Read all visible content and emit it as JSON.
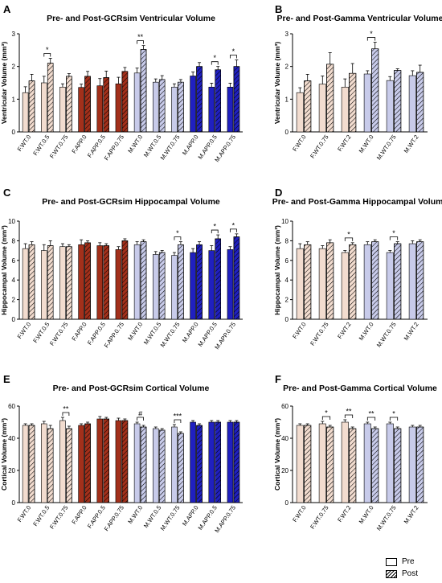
{
  "colors": {
    "wt_female": "#F2DCCF",
    "app_female": "#A3301B",
    "wt_male": "#C8CBEA",
    "app_male": "#2020C0",
    "bar_outline": "#000000"
  },
  "legend": {
    "pre_label": "Pre",
    "post_label": "Post"
  },
  "chart_data": [
    {
      "panel": "A",
      "type": "bar",
      "title": "Pre- and Post-GCRsim Ventricular Volume",
      "ylabel": "Ventricular Volume (mm³)",
      "ylim": [
        0,
        3
      ],
      "yticks": [
        0,
        1,
        2,
        3
      ],
      "categories": [
        "F.WT.0",
        "F.WT.0.5",
        "F.WT.0.75",
        "F.APP.0",
        "F.APP.0.5",
        "F.APP.0.75",
        "M.WT.0",
        "M.WT.0.5",
        "M.WT.0.75",
        "M.APP.0",
        "M.APP.0.5",
        "M.APP.0.75"
      ],
      "groups": [
        "wt_female",
        "wt_female",
        "wt_female",
        "app_female",
        "app_female",
        "app_female",
        "wt_male",
        "wt_male",
        "wt_male",
        "app_male",
        "app_male",
        "app_male"
      ],
      "series": [
        {
          "name": "Pre",
          "values": [
            1.2,
            1.5,
            1.37,
            1.36,
            1.41,
            1.47,
            1.8,
            1.52,
            1.37,
            1.71,
            1.37,
            1.37
          ],
          "errors": [
            0.18,
            0.2,
            0.1,
            0.1,
            0.22,
            0.2,
            0.15,
            0.1,
            0.1,
            0.12,
            0.12,
            0.12
          ]
        },
        {
          "name": "Post",
          "values": [
            1.56,
            2.1,
            1.7,
            1.7,
            1.66,
            1.85,
            2.52,
            1.6,
            1.52,
            2.0,
            1.9,
            2.0
          ],
          "errors": [
            0.2,
            0.15,
            0.08,
            0.15,
            0.2,
            0.12,
            0.12,
            0.12,
            0.08,
            0.12,
            0.1,
            0.2
          ]
        }
      ],
      "annotations": [
        {
          "category_index": 1,
          "text": "*"
        },
        {
          "category_index": 6,
          "text": "**"
        },
        {
          "category_index": 10,
          "text": "*"
        },
        {
          "category_index": 11,
          "text": "*"
        }
      ]
    },
    {
      "panel": "B",
      "type": "bar",
      "title": "Pre- and Post-Gamma Ventricular Volume",
      "ylabel": "Ventricular Volume (mm³)",
      "ylim": [
        0,
        3
      ],
      "yticks": [
        0,
        1,
        2,
        3
      ],
      "categories": [
        "F.WT.0",
        "F.WT.0.75",
        "F.WT.2",
        "M.WT.0",
        "M.WT.0.75",
        "M.WT.2"
      ],
      "groups": [
        "wt_female",
        "wt_female",
        "wt_female",
        "wt_male",
        "wt_male",
        "wt_male"
      ],
      "series": [
        {
          "name": "Pre",
          "values": [
            1.2,
            1.46,
            1.37,
            1.77,
            1.57,
            1.72
          ],
          "errors": [
            0.15,
            0.25,
            0.25,
            0.1,
            0.12,
            0.15
          ]
        },
        {
          "name": "Post",
          "values": [
            1.56,
            2.07,
            1.79,
            2.54,
            1.88,
            1.82
          ],
          "errors": [
            0.2,
            0.35,
            0.3,
            0.2,
            0.05,
            0.22
          ]
        }
      ],
      "annotations": [
        {
          "category_index": 3,
          "text": "*"
        }
      ]
    },
    {
      "panel": "C",
      "type": "bar",
      "title": "Pre- and Post-GCRsim Hippocampal Volume",
      "ylabel": "Hippocampal Volume (mm³)",
      "ylim": [
        0,
        10
      ],
      "yticks": [
        0,
        2,
        4,
        6,
        8,
        10
      ],
      "categories": [
        "F.WT.0",
        "F.WT.0.5",
        "F.WT.0.75",
        "F.APP.0",
        "F.APP.0.5",
        "F.APP.0.75",
        "M.WT.0",
        "M.WT.0.5",
        "M.WT.0.75",
        "M.APP.0",
        "M.APP.0.5",
        "M.APP.0.75"
      ],
      "groups": [
        "wt_female",
        "wt_female",
        "wt_female",
        "app_female",
        "app_female",
        "app_female",
        "wt_male",
        "wt_male",
        "wt_male",
        "app_male",
        "app_male",
        "app_male"
      ],
      "series": [
        {
          "name": "Pre",
          "values": [
            7.2,
            7.0,
            7.4,
            7.6,
            7.5,
            7.1,
            7.6,
            6.6,
            6.5,
            6.8,
            7.0,
            7.1
          ],
          "errors": [
            0.5,
            0.6,
            0.3,
            0.5,
            0.3,
            0.3,
            0.3,
            0.3,
            0.3,
            0.4,
            0.5,
            0.3
          ]
        },
        {
          "name": "Post",
          "values": [
            7.6,
            7.5,
            7.4,
            7.8,
            7.5,
            8.0,
            7.9,
            6.8,
            7.6,
            7.6,
            8.2,
            8.4
          ],
          "errors": [
            0.3,
            0.5,
            0.2,
            0.2,
            0.2,
            0.2,
            0.2,
            0.2,
            0.3,
            0.3,
            0.4,
            0.3
          ]
        }
      ],
      "annotations": [
        {
          "category_index": 8,
          "text": "*"
        },
        {
          "category_index": 10,
          "text": "*"
        },
        {
          "category_index": 11,
          "text": "*"
        }
      ]
    },
    {
      "panel": "D",
      "type": "bar",
      "title": "Pre- and Post-Gamma Hippocampal Volume",
      "ylabel": "Hippocampal Volume (mm³)",
      "ylim": [
        0,
        10
      ],
      "yticks": [
        0,
        2,
        4,
        6,
        8,
        10
      ],
      "categories": [
        "F.WT.0",
        "F.WT.0.75",
        "F.WT.2",
        "M.WT.0",
        "M.WT.0.75",
        "M.WT.2"
      ],
      "groups": [
        "wt_female",
        "wt_female",
        "wt_female",
        "wt_male",
        "wt_male",
        "wt_male"
      ],
      "series": [
        {
          "name": "Pre",
          "values": [
            7.2,
            7.2,
            6.8,
            7.6,
            6.8,
            7.7
          ],
          "errors": [
            0.5,
            0.3,
            0.2,
            0.3,
            0.2,
            0.3
          ]
        },
        {
          "name": "Post",
          "values": [
            7.6,
            7.8,
            7.6,
            7.9,
            7.7,
            7.9
          ],
          "errors": [
            0.3,
            0.3,
            0.2,
            0.2,
            0.2,
            0.2
          ]
        }
      ],
      "annotations": [
        {
          "category_index": 2,
          "text": "*"
        },
        {
          "category_index": 4,
          "text": "*"
        }
      ]
    },
    {
      "panel": "E",
      "type": "bar",
      "title": "Pre- and Post-GCRsim Cortical Volume",
      "ylabel": "Cortical Volume (mm³)",
      "ylim": [
        0,
        60
      ],
      "yticks": [
        0,
        20,
        40,
        60
      ],
      "categories": [
        "F.WT.0",
        "F.WT.0.5",
        "F.WT.0.75",
        "F.APP.0",
        "F.APP.0.5",
        "F.APP.0.75",
        "M.WT.0",
        "M.WT.0.5",
        "M.WT.0.75",
        "M.APP.0",
        "M.APP.0.5",
        "M.APP.0.75"
      ],
      "groups": [
        "wt_female",
        "wt_female",
        "wt_female",
        "app_female",
        "app_female",
        "app_female",
        "wt_male",
        "wt_male",
        "wt_male",
        "app_male",
        "app_male",
        "app_male"
      ],
      "series": [
        {
          "name": "Pre",
          "values": [
            48,
            49,
            51,
            48,
            52,
            51,
            49,
            46,
            47,
            50,
            50,
            50
          ],
          "errors": [
            1,
            1.5,
            2,
            1,
            1.5,
            1.5,
            1,
            1,
            1.5,
            1,
            1,
            1
          ]
        },
        {
          "name": "Post",
          "values": [
            48,
            46,
            46,
            49,
            52,
            51,
            47,
            45,
            43,
            48,
            50,
            50
          ],
          "errors": [
            1,
            2,
            1.5,
            1,
            1,
            1,
            1,
            1,
            1,
            1,
            1,
            1
          ]
        }
      ],
      "annotations": [
        {
          "category_index": 2,
          "text": "**"
        },
        {
          "category_index": 6,
          "text": "#"
        },
        {
          "category_index": 8,
          "text": "***"
        }
      ]
    },
    {
      "panel": "F",
      "type": "bar",
      "title": "Pre- and Post-Gamma Cortical Volume",
      "ylabel": "Cortical Volume (mm³)",
      "ylim": [
        0,
        60
      ],
      "yticks": [
        0,
        20,
        40,
        60
      ],
      "categories": [
        "F.WT.0",
        "F.WT.0.75",
        "F.WT.2",
        "M.WT.0",
        "M.WT.0.75",
        "M.WT.2"
      ],
      "groups": [
        "wt_female",
        "wt_female",
        "wt_female",
        "wt_male",
        "wt_male",
        "wt_male"
      ],
      "series": [
        {
          "name": "Pre",
          "values": [
            48,
            49,
            50,
            49,
            49,
            47
          ],
          "errors": [
            1,
            1.5,
            1.5,
            1,
            1,
            1
          ]
        },
        {
          "name": "Post",
          "values": [
            48,
            47,
            46,
            46,
            46,
            47
          ],
          "errors": [
            1,
            1,
            1,
            1,
            1,
            1
          ]
        }
      ],
      "annotations": [
        {
          "category_index": 1,
          "text": "*"
        },
        {
          "category_index": 2,
          "text": "**"
        },
        {
          "category_index": 3,
          "text": "**"
        },
        {
          "category_index": 4,
          "text": "*"
        }
      ]
    }
  ]
}
